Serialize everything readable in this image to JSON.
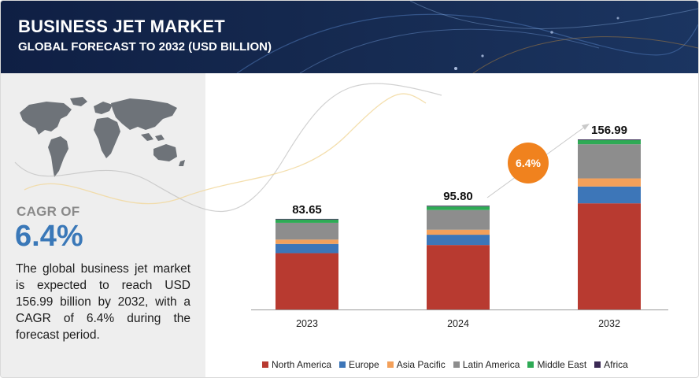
{
  "header": {
    "title": "BUSINESS JET MARKET",
    "subtitle": "GLOBAL FORECAST TO 2032 (USD BILLION)"
  },
  "sidebar": {
    "cagr_label": "CAGR OF",
    "cagr_value": "6.4%",
    "description": "The global business jet market is expected to reach USD 156.99 billion by 2032, with a CAGR of 6.4% during the forecast period."
  },
  "cagr_bubble": {
    "label": "6.4%",
    "color": "#f0821e"
  },
  "chart_data": {
    "type": "bar",
    "stacked": true,
    "categories": [
      "2023",
      "2024",
      "2032"
    ],
    "totals": [
      83.65,
      95.8,
      156.99
    ],
    "total_labels": [
      "83.65",
      "95.80",
      "156.99"
    ],
    "series": [
      {
        "name": "North America",
        "color": "#b83a30",
        "values": [
          52.0,
          59.5,
          98.0
        ]
      },
      {
        "name": "Europe",
        "color": "#3d76b8",
        "values": [
          8.5,
          9.5,
          15.5
        ]
      },
      {
        "name": "Asia Pacific",
        "color": "#f3a05a",
        "values": [
          4.0,
          4.6,
          7.5
        ]
      },
      {
        "name": "Latin America",
        "color": "#8d8d8d",
        "values": [
          15.5,
          18.2,
          31.5
        ]
      },
      {
        "name": "Middle East",
        "color": "#2eaa55",
        "values": [
          3.0,
          3.3,
          3.8
        ]
      },
      {
        "name": "Africa",
        "color": "#3b2a55",
        "values": [
          0.65,
          0.7,
          0.69
        ]
      }
    ],
    "ylim": [
      0,
      165
    ],
    "grid": false,
    "legend_position": "bottom",
    "xlabel": "",
    "ylabel": ""
  }
}
